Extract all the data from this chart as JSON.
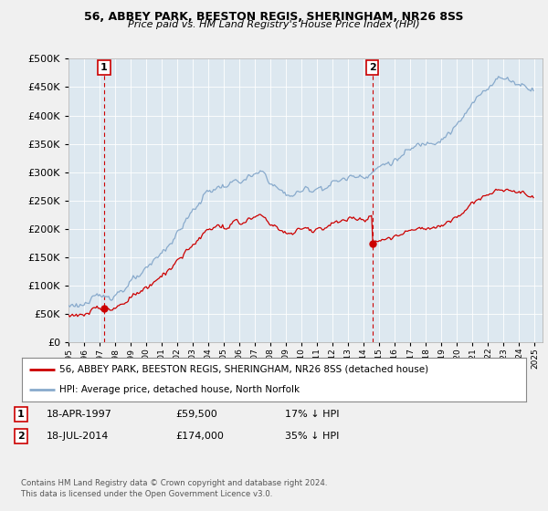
{
  "title": "56, ABBEY PARK, BEESTON REGIS, SHERINGHAM, NR26 8SS",
  "subtitle": "Price paid vs. HM Land Registry's House Price Index (HPI)",
  "legend_label1": "56, ABBEY PARK, BEESTON REGIS, SHERINGHAM, NR26 8SS (detached house)",
  "legend_label2": "HPI: Average price, detached house, North Norfolk",
  "transaction1_date": "18-APR-1997",
  "transaction1_price": "£59,500",
  "transaction1_hpi": "17% ↓ HPI",
  "transaction2_date": "18-JUL-2014",
  "transaction2_price": "£174,000",
  "transaction2_hpi": "35% ↓ HPI",
  "footer": "Contains HM Land Registry data © Crown copyright and database right 2024.\nThis data is licensed under the Open Government Licence v3.0.",
  "marker1_year": 1997.29,
  "marker1_value": 59500,
  "marker2_year": 2014.54,
  "marker2_value": 174000,
  "vline1_year": 1997.29,
  "vline2_year": 2014.54,
  "ylim_max": 500000,
  "ylim_min": 0,
  "xlim_min": 1995.0,
  "xlim_max": 2025.5,
  "line1_color": "#cc0000",
  "line2_color": "#88aacc",
  "vline_color": "#cc0000",
  "bg_color": "#f0f0f0",
  "plot_bg_color": "#dde8f0",
  "grid_color": "#ffffff"
}
